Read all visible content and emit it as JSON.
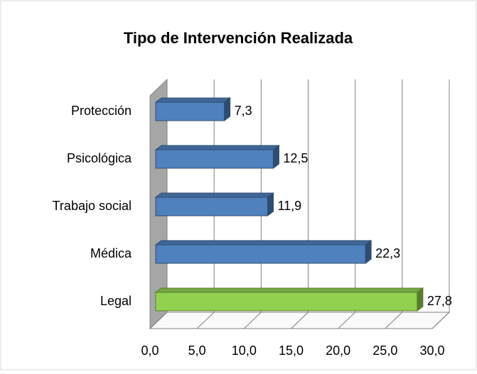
{
  "chart_data": {
    "type": "bar3d_horizontal",
    "title": "Tipo de Intervención Realizada",
    "categories": [
      "Protección",
      "Psicológica",
      "Trabajo social",
      "Médica",
      "Legal"
    ],
    "values": [
      7.3,
      12.5,
      11.9,
      22.3,
      27.8
    ],
    "value_labels": [
      "7,3",
      "12,5",
      "11,9",
      "22,3",
      "27,8"
    ],
    "colors": [
      "#4f81bd",
      "#4f81bd",
      "#4f81bd",
      "#4f81bd",
      "#92d050"
    ],
    "xlim": [
      0,
      30
    ],
    "xticks": [
      {
        "value": 0,
        "label": "0,0"
      },
      {
        "value": 5,
        "label": "5,0"
      },
      {
        "value": 10,
        "label": "10,0"
      },
      {
        "value": 15,
        "label": "15,0"
      },
      {
        "value": 20,
        "label": "20,0"
      },
      {
        "value": 25,
        "label": "25,0"
      },
      {
        "value": 30,
        "label": "30,0"
      }
    ],
    "grid": true
  }
}
